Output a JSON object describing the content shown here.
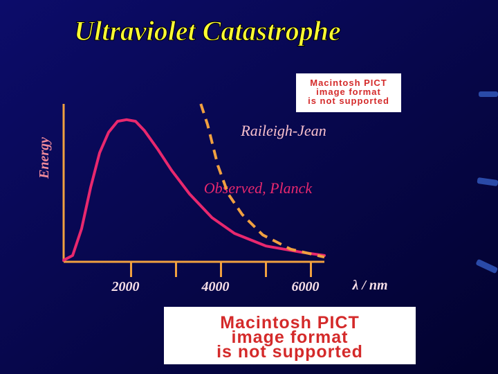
{
  "chart_data": {
    "type": "line",
    "title": "Ultraviolet Catastrophe",
    "x_label": "λ / nm",
    "y_label": "Energy",
    "xlim": [
      500,
      6300
    ],
    "xticks": [
      2000,
      4000,
      6000
    ],
    "minor_xticks": [
      3000,
      5000
    ],
    "ylim": [
      0,
      100
    ],
    "axis_color": "#f0a040",
    "series": [
      {
        "name": "Observed, Planck",
        "color": "#e8286e",
        "dashed": false,
        "x": [
          500,
          700,
          900,
          1100,
          1300,
          1500,
          1700,
          1900,
          2100,
          2300,
          2600,
          2900,
          3300,
          3800,
          4300,
          5000,
          5800,
          6300
        ],
        "values": [
          1,
          4,
          21,
          47,
          69,
          82,
          89,
          90,
          89,
          83,
          71,
          58,
          43,
          28,
          18,
          10,
          6,
          4
        ]
      },
      {
        "name": "Raileigh-Jean",
        "color": "#f0a040",
        "dashed": true,
        "x": [
          3550,
          3700,
          3930,
          4160,
          4470,
          4930,
          5550,
          6300
        ],
        "values": [
          100,
          87,
          61,
          43,
          30,
          17,
          8,
          3
        ]
      }
    ]
  },
  "placeholders": [
    [
      "Macintosh PICT",
      "image format",
      "is not supported"
    ],
    [
      "Macintosh PICT",
      "image format",
      "is not supported"
    ]
  ]
}
